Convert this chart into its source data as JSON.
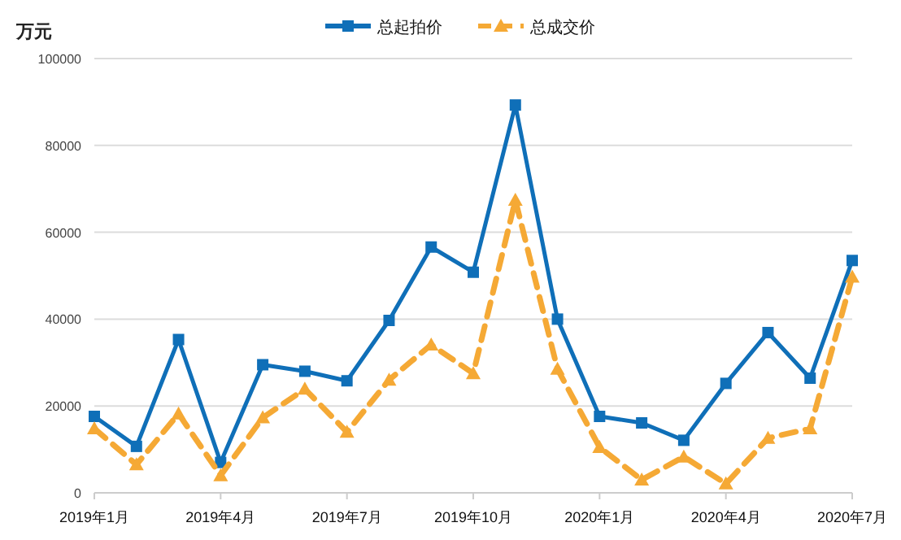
{
  "chart_data": {
    "type": "line",
    "ylabel": "万元",
    "categories": [
      "2019年1月",
      null,
      null,
      "2019年4月",
      null,
      null,
      "2019年7月",
      null,
      null,
      "2019年10月",
      null,
      null,
      "2020年1月",
      null,
      null,
      "2020年4月",
      null,
      null,
      "2020年7月"
    ],
    "series": [
      {
        "name": "总起拍价",
        "color": "#0f6fb8",
        "marker": "square",
        "line_style": "solid",
        "values": [
          17600,
          10700,
          35300,
          7000,
          29500,
          28000,
          25800,
          39700,
          56600,
          50800,
          89300,
          40000,
          17600,
          16100,
          12100,
          25200,
          36900,
          26400,
          53500
        ]
      },
      {
        "name": "总成交价",
        "color": "#f5a935",
        "marker": "triangle",
        "line_style": "dashed",
        "values": [
          14800,
          6500,
          18200,
          4000,
          17300,
          23900,
          14000,
          26000,
          34100,
          27500,
          67400,
          28500,
          10500,
          3000,
          8300,
          2100,
          12600,
          14800,
          49700
        ]
      }
    ],
    "ylim": [
      0,
      100000
    ],
    "yticks": [
      0,
      20000,
      40000,
      60000,
      80000,
      100000
    ],
    "grid": "y",
    "legend": "top"
  }
}
